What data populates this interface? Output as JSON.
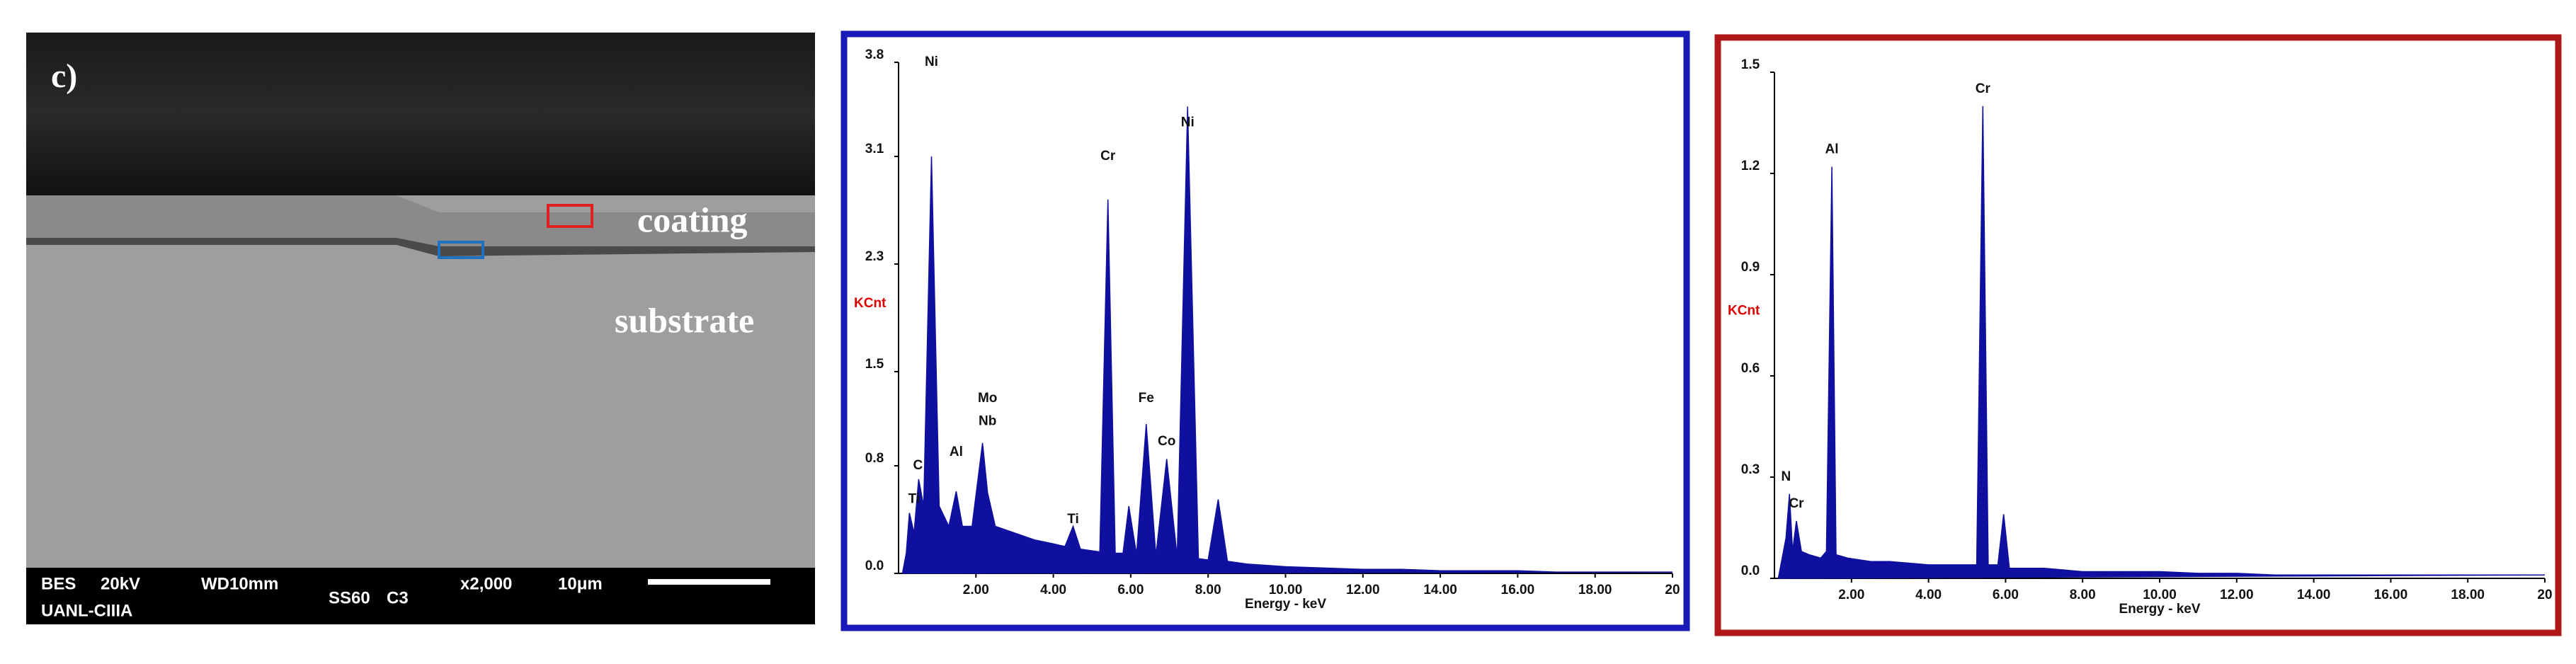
{
  "sem": {
    "panel_label": "c)",
    "coating_label": "coating",
    "substrate_label": "substrate",
    "info": [
      "BES",
      "20kV",
      "WD10mm",
      "SS60",
      "C3",
      "x2,000",
      "10μm"
    ],
    "lab": "UANL-CIIIA"
  },
  "chart_data": [
    {
      "type": "area",
      "color": "#1010a0",
      "frame_color": "#1a1ab8",
      "xlabel": "Energy - keV",
      "ylabel": "KCnt",
      "x": [
        0.1,
        0.2,
        0.28,
        0.4,
        0.52,
        0.65,
        0.85,
        1.05,
        1.3,
        1.49,
        1.65,
        1.9,
        2.17,
        2.3,
        2.5,
        3.0,
        3.5,
        4.0,
        4.3,
        4.51,
        4.7,
        5.2,
        5.41,
        5.6,
        5.8,
        5.95,
        6.15,
        6.4,
        6.65,
        6.93,
        7.2,
        7.47,
        7.75,
        8.0,
        8.26,
        8.5,
        9.0,
        10,
        11,
        12,
        13,
        14,
        15,
        16,
        17,
        18,
        19,
        20
      ],
      "values": [
        0,
        0.15,
        0.45,
        0.3,
        0.7,
        0.5,
        3.1,
        0.5,
        0.35,
        0.61,
        0.35,
        0.35,
        0.97,
        0.6,
        0.35,
        0.3,
        0.25,
        0.22,
        0.2,
        0.35,
        0.18,
        0.16,
        2.78,
        0.15,
        0.15,
        0.5,
        0.14,
        1.11,
        0.13,
        0.85,
        0.12,
        3.47,
        0.11,
        0.1,
        0.55,
        0.09,
        0.07,
        0.05,
        0.04,
        0.03,
        0.03,
        0.02,
        0.02,
        0.02,
        0.01,
        0.01,
        0.01,
        0.01
      ],
      "xlim": [
        0,
        20
      ],
      "ylim": [
        0,
        3.8
      ],
      "xticks": [
        {
          "value": 2,
          "label": "2.00"
        },
        {
          "value": 4,
          "label": "4.00"
        },
        {
          "value": 6,
          "label": "6.00"
        },
        {
          "value": 8,
          "label": "8.00"
        },
        {
          "value": 10,
          "label": "10.00"
        },
        {
          "value": 12,
          "label": "12.00"
        },
        {
          "value": 14,
          "label": "14.00"
        },
        {
          "value": 16,
          "label": "16.00"
        },
        {
          "value": 18,
          "label": "18.00"
        },
        20
      ],
      "yticks": [
        {
          "value": 0,
          "label": "0.0"
        },
        0.8,
        1.5,
        2.3,
        3.1,
        3.8
      ],
      "annotations": [
        {
          "text": "Ni",
          "x": 0.85,
          "y": 3.8
        },
        {
          "text": "C",
          "x": 0.5,
          "y": 0.8
        },
        {
          "text": "Ti",
          "x": 0.4,
          "y": 0.55
        },
        {
          "text": "Al",
          "x": 1.49,
          "y": 0.9
        },
        {
          "text": "Mo",
          "x": 2.3,
          "y": 1.3
        },
        {
          "text": "Nb",
          "x": 2.3,
          "y": 1.13
        },
        {
          "text": "Ti",
          "x": 4.51,
          "y": 0.4
        },
        {
          "text": "Cr",
          "x": 5.41,
          "y": 3.1
        },
        {
          "text": "Fe",
          "x": 6.4,
          "y": 1.3
        },
        {
          "text": "Co",
          "x": 6.93,
          "y": 0.98
        },
        {
          "text": "Ni",
          "x": 7.47,
          "y": 3.35
        }
      ]
    },
    {
      "type": "area",
      "color": "#1010a0",
      "frame_color": "#b01818",
      "xlabel": "Energy - keV",
      "ylabel": "KCnt",
      "x": [
        0.1,
        0.2,
        0.3,
        0.39,
        0.47,
        0.57,
        0.7,
        0.9,
        1.2,
        1.35,
        1.49,
        1.6,
        1.9,
        2.5,
        3.0,
        4.0,
        5.0,
        5.25,
        5.41,
        5.55,
        5.8,
        5.95,
        6.1,
        6.5,
        7.0,
        8.0,
        9.0,
        10,
        11,
        12,
        13,
        14,
        15,
        16,
        17,
        18,
        19,
        20
      ],
      "values": [
        0,
        0.06,
        0.12,
        0.25,
        0.08,
        0.17,
        0.08,
        0.07,
        0.06,
        0.08,
        1.22,
        0.07,
        0.06,
        0.05,
        0.05,
        0.04,
        0.04,
        0.04,
        1.4,
        0.04,
        0.04,
        0.19,
        0.03,
        0.03,
        0.03,
        0.02,
        0.02,
        0.02,
        0.015,
        0.015,
        0.01,
        0.01,
        0.01,
        0.01,
        0.01,
        0.01,
        0.01,
        0.01
      ],
      "xlim": [
        0,
        20
      ],
      "ylim": [
        0,
        1.5
      ],
      "xticks": [
        {
          "value": 2,
          "label": "2.00"
        },
        {
          "value": 4,
          "label": "4.00"
        },
        {
          "value": 6,
          "label": "6.00"
        },
        {
          "value": 8,
          "label": "8.00"
        },
        {
          "value": 10,
          "label": "10.00"
        },
        {
          "value": 12,
          "label": "12.00"
        },
        {
          "value": 14,
          "label": "14.00"
        },
        {
          "value": 16,
          "label": "16.00"
        },
        {
          "value": 18,
          "label": "18.00"
        },
        20
      ],
      "yticks": [
        {
          "value": 0,
          "label": "0.0"
        },
        0.3,
        0.6,
        0.9,
        1.2,
        1.5
      ],
      "annotations": [
        {
          "text": "N",
          "x": 0.3,
          "y": 0.3
        },
        {
          "text": "Cr",
          "x": 0.57,
          "y": 0.22
        },
        {
          "text": "Al",
          "x": 1.49,
          "y": 1.27
        },
        {
          "text": "Cr",
          "x": 5.41,
          "y": 1.45
        }
      ]
    }
  ]
}
